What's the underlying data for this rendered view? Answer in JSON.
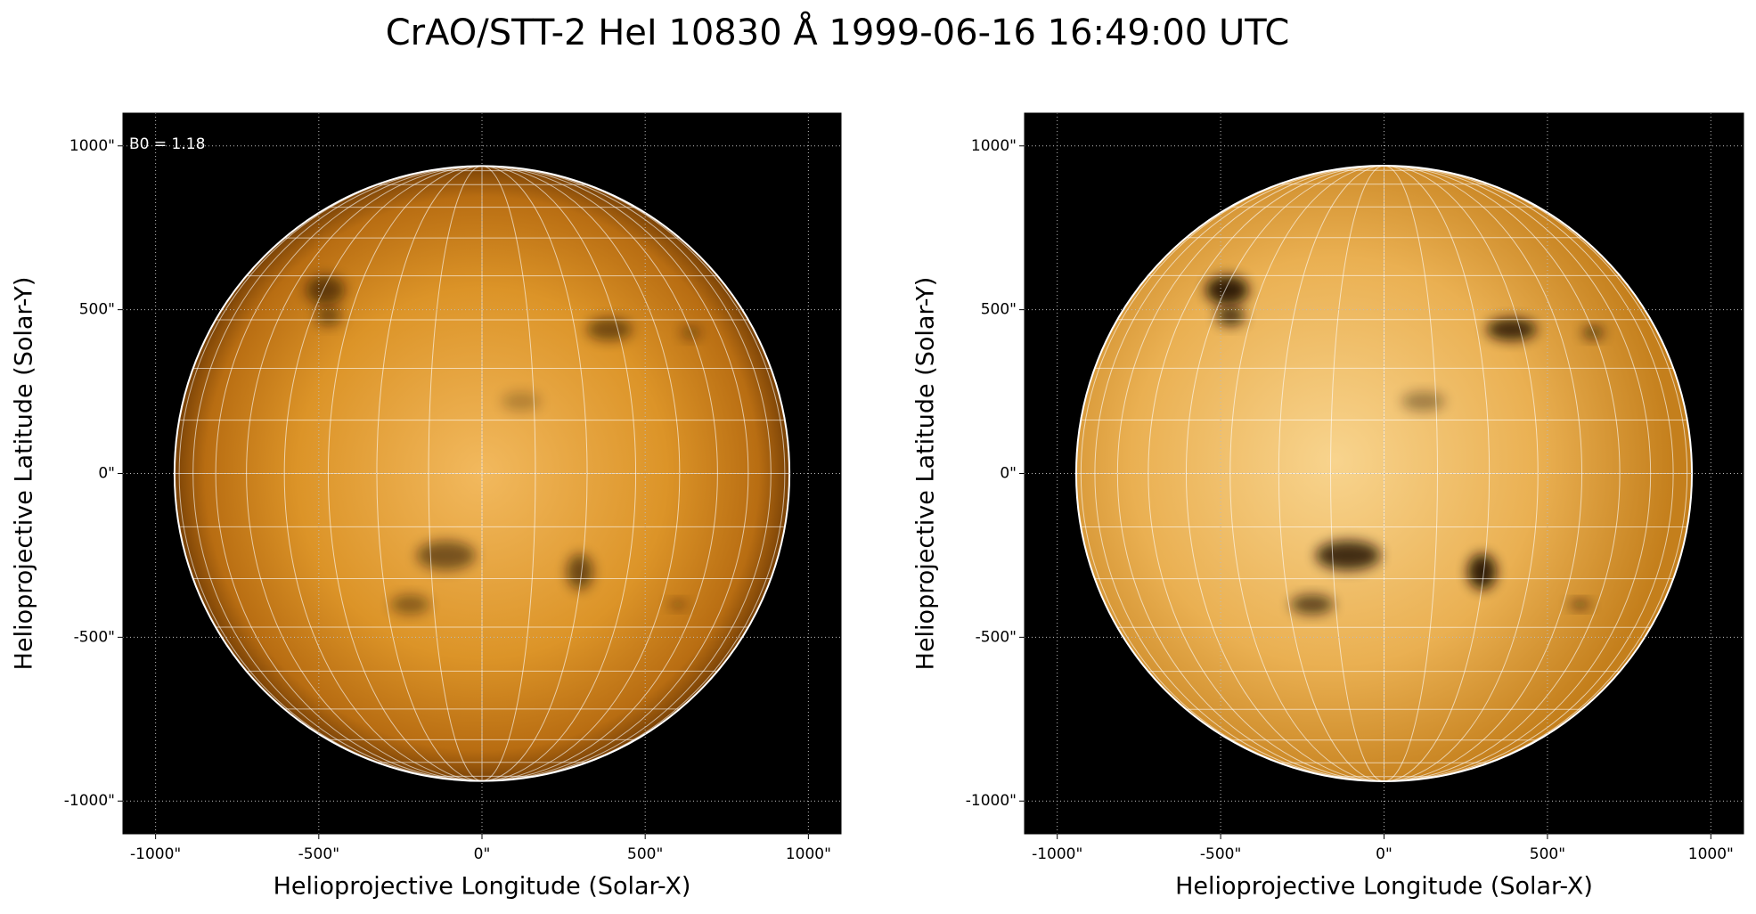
{
  "title": "CrAO/STT-2 HeI 10830 Å 1999-06-16 16:49:00 UTC",
  "chart_data": [
    {
      "type": "image",
      "annotation": "B0 = 1.18",
      "x_label": "Helioprojective Longitude (Solar-X)",
      "y_label": "Helioprojective Latitude (Solar-Y)",
      "xlim": [
        -1100,
        1100
      ],
      "ylim": [
        -1100,
        1100
      ],
      "xticks": [
        {
          "value": -1000,
          "label": "-1000\""
        },
        {
          "value": -500,
          "label": "-500\""
        },
        {
          "value": 0,
          "label": "0\""
        },
        {
          "value": 500,
          "label": "500\""
        },
        {
          "value": 1000,
          "label": "1000\""
        }
      ],
      "yticks": [
        {
          "value": -1000,
          "label": "-1000\""
        },
        {
          "value": -500,
          "label": "-500\""
        },
        {
          "value": 0,
          "label": "0\""
        },
        {
          "value": 500,
          "label": "500\""
        },
        {
          "value": 1000,
          "label": "1000\""
        }
      ],
      "grid": true
    },
    {
      "type": "image",
      "x_label": "Helioprojective Longitude (Solar-X)",
      "y_label": "Helioprojective Latitude (Solar-Y)",
      "xlim": [
        -1100,
        1100
      ],
      "ylim": [
        -1100,
        1100
      ],
      "xticks": [
        {
          "value": -1000,
          "label": "-1000\""
        },
        {
          "value": -500,
          "label": "-500\""
        },
        {
          "value": 0,
          "label": "0\""
        },
        {
          "value": 500,
          "label": "500\""
        },
        {
          "value": 1000,
          "label": "1000\""
        }
      ],
      "yticks": [
        {
          "value": -1000,
          "label": "-1000\""
        },
        {
          "value": -500,
          "label": "-500\""
        },
        {
          "value": 0,
          "label": "0\""
        },
        {
          "value": 500,
          "label": "500\""
        },
        {
          "value": 1000,
          "label": "1000\""
        }
      ],
      "grid": true
    }
  ]
}
